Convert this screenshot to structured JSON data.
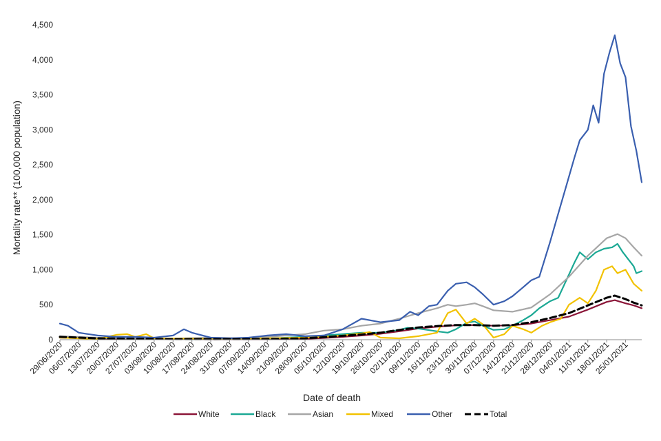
{
  "chart_data": {
    "type": "line",
    "xlabel": "Date of death",
    "ylabel": "Mortality rate** (100,000 population)",
    "ylim": [
      0,
      4500
    ],
    "yticks": [
      "0",
      "500",
      "1,000",
      "1,500",
      "2,000",
      "2,500",
      "3,000",
      "3,500",
      "4,000",
      "4,500"
    ],
    "xlim": [
      "2020-06-29",
      "2021-01-31"
    ],
    "xticks": [
      "29/06/2020",
      "06/07/2020",
      "13/07/2020",
      "20/07/2020",
      "27/07/2020",
      "03/08/2020",
      "10/08/2020",
      "17/08/2020",
      "24/08/2020",
      "31/08/2020",
      "07/09/2020",
      "14/09/2020",
      "21/09/2020",
      "28/09/2020",
      "05/10/2020",
      "12/10/2020",
      "19/10/2020",
      "26/10/2020",
      "02/11/2020",
      "09/11/2020",
      "16/11/2020",
      "23/11/2020",
      "30/11/2020",
      "07/12/2020",
      "14/12/2020",
      "21/12/2020",
      "28/12/2020",
      "04/01/2021",
      "11/01/2021",
      "18/01/2021",
      "25/01/2021"
    ],
    "grid": false,
    "legend_position": "bottom",
    "series": [
      {
        "name": "White",
        "color": "#8b1538",
        "dash": "solid",
        "points": [
          [
            "2020-06-29",
            30
          ],
          [
            "2020-07-13",
            15
          ],
          [
            "2020-08-03",
            8
          ],
          [
            "2020-08-24",
            5
          ],
          [
            "2020-09-14",
            5
          ],
          [
            "2020-09-28",
            12
          ],
          [
            "2020-10-05",
            25
          ],
          [
            "2020-10-12",
            40
          ],
          [
            "2020-10-19",
            60
          ],
          [
            "2020-10-26",
            85
          ],
          [
            "2020-11-02",
            120
          ],
          [
            "2020-11-09",
            160
          ],
          [
            "2020-11-16",
            185
          ],
          [
            "2020-11-23",
            205
          ],
          [
            "2020-11-30",
            210
          ],
          [
            "2020-12-07",
            200
          ],
          [
            "2020-12-14",
            205
          ],
          [
            "2020-12-21",
            230
          ],
          [
            "2020-12-28",
            280
          ],
          [
            "2021-01-04",
            330
          ],
          [
            "2021-01-11",
            430
          ],
          [
            "2021-01-18",
            540
          ],
          [
            "2021-01-21",
            565
          ],
          [
            "2021-01-25",
            520
          ],
          [
            "2021-01-28",
            490
          ],
          [
            "2021-01-31",
            450
          ]
        ]
      },
      {
        "name": "Black",
        "color": "#1ba894",
        "dash": "solid",
        "points": [
          [
            "2020-06-29",
            40
          ],
          [
            "2020-07-06",
            30
          ],
          [
            "2020-07-13",
            20
          ],
          [
            "2020-07-20",
            25
          ],
          [
            "2020-07-27",
            15
          ],
          [
            "2020-08-03",
            10
          ],
          [
            "2020-08-17",
            5
          ],
          [
            "2020-08-31",
            10
          ],
          [
            "2020-09-14",
            15
          ],
          [
            "2020-09-21",
            30
          ],
          [
            "2020-09-28",
            40
          ],
          [
            "2020-10-05",
            60
          ],
          [
            "2020-10-12",
            80
          ],
          [
            "2020-10-19",
            100
          ],
          [
            "2020-10-26",
            100
          ],
          [
            "2020-11-02",
            140
          ],
          [
            "2020-11-05",
            170
          ],
          [
            "2020-11-09",
            160
          ],
          [
            "2020-11-16",
            120
          ],
          [
            "2020-11-20",
            100
          ],
          [
            "2020-11-23",
            150
          ],
          [
            "2020-11-27",
            240
          ],
          [
            "2020-11-30",
            260
          ],
          [
            "2020-12-03",
            200
          ],
          [
            "2020-12-07",
            140
          ],
          [
            "2020-12-11",
            150
          ],
          [
            "2020-12-14",
            200
          ],
          [
            "2020-12-18",
            280
          ],
          [
            "2020-12-21",
            350
          ],
          [
            "2020-12-24",
            450
          ],
          [
            "2020-12-28",
            550
          ],
          [
            "2020-12-31",
            600
          ],
          [
            "2021-01-03",
            850
          ],
          [
            "2021-01-06",
            1100
          ],
          [
            "2021-01-08",
            1250
          ],
          [
            "2021-01-11",
            1150
          ],
          [
            "2021-01-14",
            1250
          ],
          [
            "2021-01-17",
            1300
          ],
          [
            "2021-01-20",
            1320
          ],
          [
            "2021-01-22",
            1370
          ],
          [
            "2021-01-24",
            1250
          ],
          [
            "2021-01-26",
            1150
          ],
          [
            "2021-01-28",
            1050
          ],
          [
            "2021-01-29",
            950
          ],
          [
            "2021-01-31",
            980
          ]
        ]
      },
      {
        "name": "Asian",
        "color": "#a6a6a6",
        "dash": "solid",
        "points": [
          [
            "2020-06-29",
            50
          ],
          [
            "2020-07-13",
            30
          ],
          [
            "2020-08-03",
            10
          ],
          [
            "2020-08-24",
            30
          ],
          [
            "2020-09-07",
            20
          ],
          [
            "2020-09-21",
            60
          ],
          [
            "2020-09-28",
            80
          ],
          [
            "2020-10-05",
            130
          ],
          [
            "2020-10-12",
            150
          ],
          [
            "2020-10-19",
            200
          ],
          [
            "2020-10-26",
            230
          ],
          [
            "2020-11-02",
            300
          ],
          [
            "2020-11-09",
            380
          ],
          [
            "2020-11-16",
            450
          ],
          [
            "2020-11-20",
            500
          ],
          [
            "2020-11-23",
            480
          ],
          [
            "2020-11-27",
            500
          ],
          [
            "2020-11-30",
            520
          ],
          [
            "2020-12-03",
            480
          ],
          [
            "2020-12-07",
            420
          ],
          [
            "2020-12-14",
            400
          ],
          [
            "2020-12-21",
            460
          ],
          [
            "2020-12-28",
            650
          ],
          [
            "2021-01-04",
            900
          ],
          [
            "2021-01-11",
            1200
          ],
          [
            "2021-01-18",
            1450
          ],
          [
            "2021-01-22",
            1510
          ],
          [
            "2021-01-25",
            1450
          ],
          [
            "2021-01-28",
            1320
          ],
          [
            "2021-01-31",
            1200
          ]
        ]
      },
      {
        "name": "Mixed",
        "color": "#f2c200",
        "dash": "solid",
        "points": [
          [
            "2020-06-29",
            30
          ],
          [
            "2020-07-13",
            10
          ],
          [
            "2020-07-20",
            70
          ],
          [
            "2020-07-24",
            80
          ],
          [
            "2020-07-27",
            40
          ],
          [
            "2020-07-31",
            80
          ],
          [
            "2020-08-03",
            20
          ],
          [
            "2020-08-17",
            15
          ],
          [
            "2020-08-31",
            10
          ],
          [
            "2020-09-14",
            20
          ],
          [
            "2020-09-28",
            30
          ],
          [
            "2020-10-05",
            40
          ],
          [
            "2020-10-12",
            60
          ],
          [
            "2020-10-19",
            90
          ],
          [
            "2020-10-22",
            110
          ],
          [
            "2020-10-26",
            30
          ],
          [
            "2020-11-02",
            20
          ],
          [
            "2020-11-09",
            50
          ],
          [
            "2020-11-16",
            100
          ],
          [
            "2020-11-20",
            380
          ],
          [
            "2020-11-23",
            430
          ],
          [
            "2020-11-27",
            230
          ],
          [
            "2020-11-30",
            300
          ],
          [
            "2020-12-03",
            220
          ],
          [
            "2020-12-07",
            30
          ],
          [
            "2020-12-11",
            80
          ],
          [
            "2020-12-14",
            200
          ],
          [
            "2020-12-18",
            150
          ],
          [
            "2020-12-21",
            100
          ],
          [
            "2020-12-25",
            200
          ],
          [
            "2020-12-28",
            250
          ],
          [
            "2021-01-01",
            300
          ],
          [
            "2021-01-04",
            500
          ],
          [
            "2021-01-08",
            600
          ],
          [
            "2021-01-11",
            520
          ],
          [
            "2021-01-14",
            700
          ],
          [
            "2021-01-17",
            1000
          ],
          [
            "2021-01-20",
            1050
          ],
          [
            "2021-01-22",
            950
          ],
          [
            "2021-01-25",
            1000
          ],
          [
            "2021-01-28",
            800
          ],
          [
            "2021-01-31",
            700
          ]
        ]
      },
      {
        "name": "Other",
        "color": "#3a5faf",
        "dash": "solid",
        "points": [
          [
            "2020-06-29",
            230
          ],
          [
            "2020-07-02",
            200
          ],
          [
            "2020-07-06",
            100
          ],
          [
            "2020-07-13",
            60
          ],
          [
            "2020-07-20",
            40
          ],
          [
            "2020-07-27",
            40
          ],
          [
            "2020-08-03",
            30
          ],
          [
            "2020-08-10",
            60
          ],
          [
            "2020-08-14",
            150
          ],
          [
            "2020-08-17",
            100
          ],
          [
            "2020-08-24",
            30
          ],
          [
            "2020-08-31",
            20
          ],
          [
            "2020-09-07",
            30
          ],
          [
            "2020-09-14",
            60
          ],
          [
            "2020-09-21",
            80
          ],
          [
            "2020-09-28",
            50
          ],
          [
            "2020-10-05",
            60
          ],
          [
            "2020-10-12",
            150
          ],
          [
            "2020-10-19",
            300
          ],
          [
            "2020-10-26",
            250
          ],
          [
            "2020-11-02",
            280
          ],
          [
            "2020-11-06",
            400
          ],
          [
            "2020-11-09",
            350
          ],
          [
            "2020-11-13",
            480
          ],
          [
            "2020-11-16",
            500
          ],
          [
            "2020-11-20",
            700
          ],
          [
            "2020-11-23",
            800
          ],
          [
            "2020-11-27",
            820
          ],
          [
            "2020-11-30",
            750
          ],
          [
            "2020-12-03",
            650
          ],
          [
            "2020-12-07",
            500
          ],
          [
            "2020-12-11",
            550
          ],
          [
            "2020-12-14",
            620
          ],
          [
            "2020-12-18",
            750
          ],
          [
            "2020-12-21",
            850
          ],
          [
            "2020-12-24",
            900
          ],
          [
            "2020-12-28",
            1400
          ],
          [
            "2020-12-31",
            1800
          ],
          [
            "2021-01-03",
            2200
          ],
          [
            "2021-01-06",
            2600
          ],
          [
            "2021-01-08",
            2850
          ],
          [
            "2021-01-11",
            3000
          ],
          [
            "2021-01-13",
            3350
          ],
          [
            "2021-01-15",
            3100
          ],
          [
            "2021-01-17",
            3800
          ],
          [
            "2021-01-19",
            4100
          ],
          [
            "2021-01-21",
            4350
          ],
          [
            "2021-01-23",
            3950
          ],
          [
            "2021-01-25",
            3750
          ],
          [
            "2021-01-27",
            3050
          ],
          [
            "2021-01-29",
            2700
          ],
          [
            "2021-01-31",
            2250
          ]
        ]
      },
      {
        "name": "Total",
        "color": "#000000",
        "dash": "dashed",
        "points": [
          [
            "2020-06-29",
            40
          ],
          [
            "2020-07-13",
            20
          ],
          [
            "2020-08-03",
            10
          ],
          [
            "2020-08-24",
            8
          ],
          [
            "2020-09-14",
            10
          ],
          [
            "2020-09-28",
            20
          ],
          [
            "2020-10-05",
            35
          ],
          [
            "2020-10-12",
            55
          ],
          [
            "2020-10-19",
            75
          ],
          [
            "2020-10-26",
            100
          ],
          [
            "2020-11-02",
            140
          ],
          [
            "2020-11-09",
            175
          ],
          [
            "2020-11-16",
            195
          ],
          [
            "2020-11-23",
            210
          ],
          [
            "2020-11-30",
            210
          ],
          [
            "2020-12-07",
            200
          ],
          [
            "2020-12-14",
            210
          ],
          [
            "2020-12-21",
            250
          ],
          [
            "2020-12-28",
            310
          ],
          [
            "2021-01-04",
            380
          ],
          [
            "2021-01-11",
            490
          ],
          [
            "2021-01-18",
            600
          ],
          [
            "2021-01-21",
            630
          ],
          [
            "2021-01-25",
            580
          ],
          [
            "2021-01-28",
            530
          ],
          [
            "2021-01-31",
            490
          ]
        ]
      }
    ]
  }
}
